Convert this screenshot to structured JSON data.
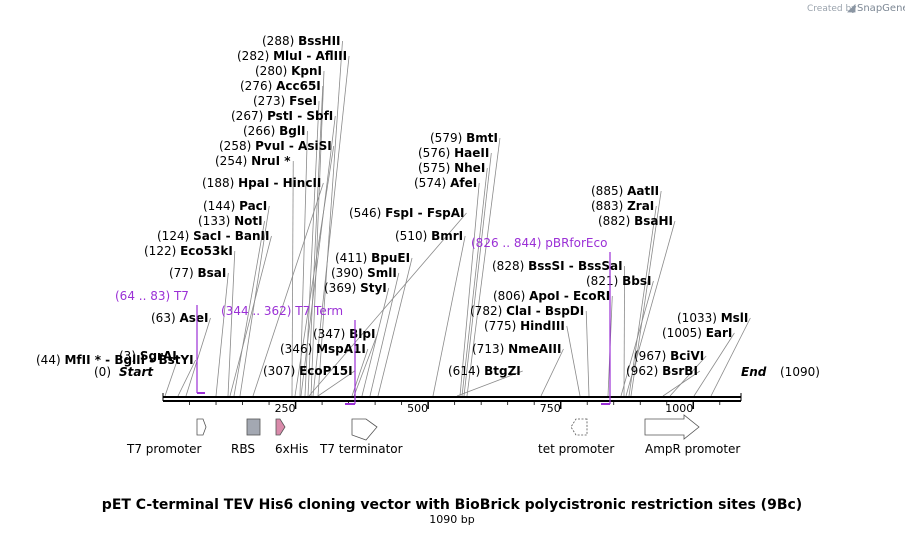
{
  "brand": {
    "created_by": "Created by",
    "name": "SnapGene"
  },
  "title": "pET C-terminal TEV His6 cloning vector with BioBrick polycistronic restriction sites (9Bc)",
  "length_label": "1090 bp",
  "ends": {
    "start": "Start",
    "start_pos": "(0)",
    "end": "End",
    "end_pos": "(1090)"
  },
  "ticks": [
    "250",
    "500",
    "750",
    "1000"
  ],
  "sites": [
    {
      "pos": "(288)",
      "name": "BssHII"
    },
    {
      "pos": "(282)",
      "name": "MluI  -  AflIII"
    },
    {
      "pos": "(280)",
      "name": "KpnI"
    },
    {
      "pos": "(276)",
      "name": "Acc65I"
    },
    {
      "pos": "(273)",
      "name": "FseI"
    },
    {
      "pos": "(267)",
      "name": "PstI  -  SbfI"
    },
    {
      "pos": "(266)",
      "name": "BglI"
    },
    {
      "pos": "(258)",
      "name": "PvuI  -  AsiSI"
    },
    {
      "pos": "(254)",
      "name": "NruI *"
    },
    {
      "pos": "(188)",
      "name": "HpaI  -  HincII"
    },
    {
      "pos": "(144)",
      "name": "PacI"
    },
    {
      "pos": "(133)",
      "name": "NotI"
    },
    {
      "pos": "(124)",
      "name": "SacI  -  BanII"
    },
    {
      "pos": "(122)",
      "name": "Eco53kI"
    },
    {
      "pos": "(77)",
      "name": "BsaI"
    },
    {
      "pos": "(63)",
      "name": "AseI"
    },
    {
      "pos": "(44)",
      "name": "MfII *  -  BglII  -  BstYI"
    },
    {
      "pos": "(3)",
      "name": "SgrAI"
    },
    {
      "pos": "(546)",
      "name": "FspI  -  FspAI"
    },
    {
      "pos": "(411)",
      "name": "BpuEI"
    },
    {
      "pos": "(390)",
      "name": "SmlI"
    },
    {
      "pos": "(369)",
      "name": "StyI"
    },
    {
      "pos": "(347)",
      "name": "BlpI"
    },
    {
      "pos": "(346)",
      "name": "MspA1I"
    },
    {
      "pos": "(307)",
      "name": "EcoP15I"
    },
    {
      "pos": "(579)",
      "name": "BmtI"
    },
    {
      "pos": "(576)",
      "name": "HaeII"
    },
    {
      "pos": "(575)",
      "name": "NheI"
    },
    {
      "pos": "(574)",
      "name": "AfeI"
    },
    {
      "pos": "(510)",
      "name": "BmrI"
    },
    {
      "pos": "(828)",
      "name": "BssSI  -  BssSaI"
    },
    {
      "pos": "(821)",
      "name": "BbsI"
    },
    {
      "pos": "(806)",
      "name": "ApoI  -  EcoRI"
    },
    {
      "pos": "(782)",
      "name": "ClaI  -  BspDI"
    },
    {
      "pos": "(775)",
      "name": "HindIII"
    },
    {
      "pos": "(713)",
      "name": "NmeAIII"
    },
    {
      "pos": "(614)",
      "name": "BtgZI"
    },
    {
      "pos": "(885)",
      "name": "AatII"
    },
    {
      "pos": "(883)",
      "name": "ZraI"
    },
    {
      "pos": "(882)",
      "name": "BsaHI"
    },
    {
      "pos": "(1033)",
      "name": "MslI"
    },
    {
      "pos": "(1005)",
      "name": "EarI"
    },
    {
      "pos": "(967)",
      "name": "BciVI"
    },
    {
      "pos": "(962)",
      "name": "BsrBI"
    }
  ],
  "primers": [
    {
      "range": "(64 .. 83)",
      "name": "T7"
    },
    {
      "range": "(344 .. 362)",
      "name": "T7 Term"
    },
    {
      "range": "(826 .. 844)",
      "name": "pBRforEco"
    }
  ],
  "features": [
    {
      "name": "T7 promoter",
      "color": "#ffffff"
    },
    {
      "name": "RBS",
      "color": "#a3a8b2"
    },
    {
      "name": "6xHis",
      "color": "#d98aaa"
    },
    {
      "name": "T7 terminator",
      "color": "#ffffff"
    },
    {
      "name": "tet promoter",
      "color": "#ffffff"
    },
    {
      "name": "AmpR promoter",
      "color": "#ffffff"
    }
  ],
  "colors": {
    "primer": "#9b30d6",
    "backbone": "#000000",
    "leader": "#888888"
  }
}
